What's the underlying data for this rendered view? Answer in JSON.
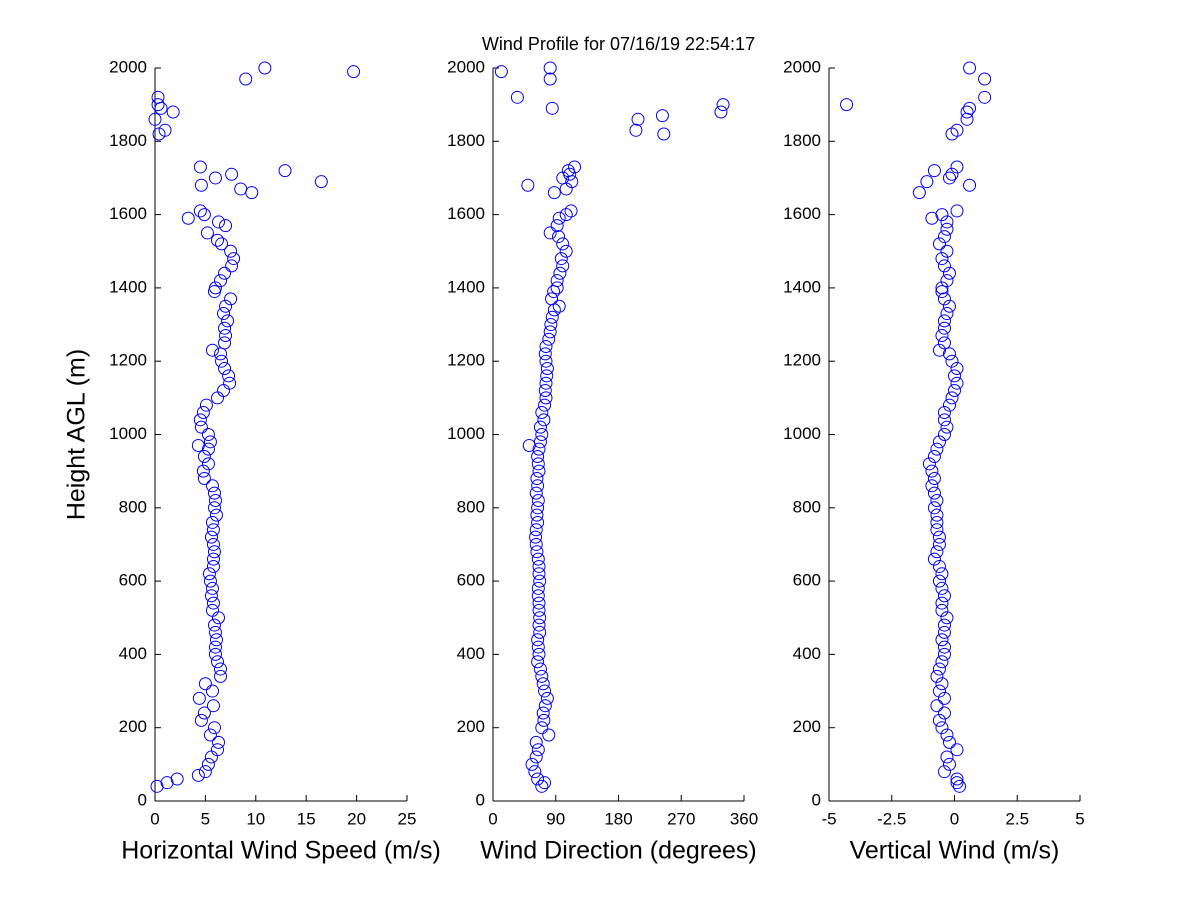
{
  "chart_data": [
    {
      "type": "scatter",
      "xlabel": "Horizontal Wind Speed (m/s)",
      "ylabel": "Height AGL (m)",
      "color": "#0000ff",
      "xlim": [
        0,
        25
      ],
      "xticks": [
        0,
        5,
        10,
        15,
        20,
        25
      ],
      "ylim": [
        0,
        2000
      ],
      "yticks": [
        0,
        200,
        400,
        600,
        800,
        1000,
        1200,
        1400,
        1600,
        1800,
        2000
      ],
      "x": [
        0.2,
        1.2,
        2.2,
        4.3,
        5.0,
        5.3,
        5.6,
        6.2,
        6.3,
        5.5,
        5.9,
        4.6,
        4.9,
        5.8,
        4.4,
        5.7,
        5.0,
        6.5,
        6.5,
        6.2,
        6.0,
        6.0,
        6.1,
        6.0,
        5.9,
        6.3,
        5.7,
        5.8,
        5.6,
        5.7,
        5.5,
        5.4,
        5.8,
        5.8,
        5.9,
        5.8,
        5.6,
        5.8,
        5.7,
        6.1,
        5.9,
        6.0,
        5.9,
        5.7,
        4.9,
        4.8,
        5.3,
        4.9,
        5.3,
        4.3,
        5.5,
        5.3,
        4.6,
        4.5,
        4.8,
        5.1,
        6.2,
        6.8,
        7.4,
        7.3,
        6.9,
        6.6,
        6.5,
        5.7,
        6.9,
        7.0,
        6.9,
        7.2,
        6.8,
        7.0,
        7.5,
        5.9,
        6.0,
        6.5,
        6.9,
        7.6,
        7.8,
        7.5,
        6.6,
        6.2,
        5.2,
        7.0,
        6.3,
        3.3,
        4.9,
        4.5,
        9.6,
        8.5,
        4.6,
        16.5,
        6.0,
        7.6,
        12.9,
        4.5,
        0.4,
        1.0,
        0.0,
        1.8,
        0.6,
        0.3,
        0.3,
        9.0,
        19.7,
        10.9
      ],
      "y": [
        40,
        50,
        60,
        70,
        80,
        100,
        120,
        140,
        160,
        180,
        200,
        220,
        240,
        260,
        280,
        300,
        320,
        340,
        360,
        380,
        400,
        420,
        440,
        460,
        480,
        500,
        520,
        540,
        560,
        580,
        600,
        620,
        640,
        660,
        680,
        700,
        720,
        740,
        760,
        780,
        800,
        820,
        840,
        860,
        880,
        900,
        920,
        940,
        960,
        970,
        980,
        1000,
        1020,
        1040,
        1060,
        1080,
        1100,
        1120,
        1140,
        1160,
        1180,
        1200,
        1220,
        1230,
        1250,
        1270,
        1290,
        1310,
        1330,
        1350,
        1370,
        1390,
        1400,
        1420,
        1440,
        1460,
        1480,
        1500,
        1520,
        1530,
        1550,
        1570,
        1580,
        1590,
        1600,
        1610,
        1660,
        1670,
        1680,
        1690,
        1700,
        1710,
        1720,
        1730,
        1820,
        1830,
        1860,
        1880,
        1890,
        1900,
        1920,
        1970,
        1990,
        2000
      ]
    },
    {
      "type": "scatter",
      "title": "Wind Profile for  07/16/19 22:54:17",
      "xlabel": "Wind Direction (degrees)",
      "color": "#0000ff",
      "xlim": [
        0,
        360
      ],
      "xticks": [
        0,
        90,
        180,
        270,
        360
      ],
      "ylim": [
        0,
        2000
      ],
      "yticks": [
        0,
        200,
        400,
        600,
        800,
        1000,
        1200,
        1400,
        1600,
        1800,
        2000
      ],
      "x": [
        70,
        74,
        64,
        60,
        56,
        62,
        65,
        62,
        80,
        70,
        73,
        72,
        75,
        78,
        74,
        72,
        70,
        68,
        64,
        66,
        65,
        64,
        67,
        66,
        67,
        66,
        66,
        65,
        65,
        67,
        66,
        66,
        65,
        63,
        62,
        61,
        62,
        64,
        63,
        64,
        65,
        62,
        64,
        63,
        66,
        65,
        64,
        66,
        52,
        68,
        70,
        68,
        73,
        70,
        74,
        76,
        75,
        76,
        77,
        78,
        76,
        75,
        76,
        80,
        82,
        83,
        85,
        88,
        95,
        84,
        87,
        92,
        92,
        96,
        100,
        98,
        105,
        100,
        94,
        82,
        92,
        95,
        105,
        112,
        88,
        105,
        50,
        113,
        100,
        110,
        108,
        117,
        245,
        205,
        208,
        243,
        327,
        85,
        330,
        35,
        82,
        12,
        82
      ],
      "y": [
        40,
        50,
        60,
        80,
        100,
        120,
        140,
        160,
        180,
        200,
        220,
        240,
        260,
        280,
        300,
        320,
        340,
        360,
        380,
        400,
        420,
        440,
        460,
        480,
        500,
        520,
        540,
        560,
        580,
        600,
        620,
        640,
        660,
        680,
        700,
        720,
        740,
        760,
        780,
        800,
        820,
        840,
        860,
        880,
        900,
        920,
        940,
        960,
        970,
        980,
        1000,
        1020,
        1040,
        1060,
        1080,
        1100,
        1120,
        1140,
        1160,
        1180,
        1200,
        1220,
        1240,
        1260,
        1280,
        1300,
        1320,
        1340,
        1350,
        1370,
        1390,
        1400,
        1420,
        1440,
        1460,
        1480,
        1500,
        1520,
        1540,
        1550,
        1570,
        1590,
        1600,
        1610,
        1660,
        1670,
        1680,
        1690,
        1700,
        1710,
        1720,
        1730,
        1820,
        1830,
        1860,
        1870,
        1880,
        1890,
        1900,
        1920,
        1970,
        1990,
        2000
      ]
    },
    {
      "type": "scatter",
      "xlabel": "Vertical Wind (m/s)",
      "color": "#0000ff",
      "xlim": [
        -5,
        5
      ],
      "xticks": [
        -5,
        -2.5,
        0,
        2.5,
        5
      ],
      "ylim": [
        0,
        2000
      ],
      "yticks": [
        0,
        200,
        400,
        600,
        800,
        1000,
        1200,
        1400,
        1600,
        1800,
        2000
      ],
      "x": [
        0.2,
        0.1,
        0.1,
        -0.4,
        -0.2,
        -0.3,
        0.1,
        -0.2,
        -0.3,
        -0.5,
        -0.6,
        -0.4,
        -0.7,
        -0.4,
        -0.6,
        -0.5,
        -0.7,
        -0.6,
        -0.5,
        -0.4,
        -0.4,
        -0.5,
        -0.4,
        -0.4,
        -0.3,
        -0.5,
        -0.5,
        -0.4,
        -0.5,
        -0.6,
        -0.5,
        -0.6,
        -0.8,
        -0.7,
        -0.6,
        -0.6,
        -0.7,
        -0.7,
        -0.7,
        -0.8,
        -0.7,
        -0.8,
        -0.9,
        -0.8,
        -0.9,
        -1.0,
        -0.8,
        -0.7,
        -0.6,
        -0.4,
        -0.3,
        -0.4,
        -0.4,
        -0.2,
        -0.1,
        0.0,
        0.1,
        0.0,
        0.1,
        -0.1,
        -0.2,
        -0.6,
        -0.4,
        -0.5,
        -0.4,
        -0.4,
        -0.3,
        -0.2,
        -0.4,
        -0.5,
        -0.5,
        -0.3,
        -0.2,
        -0.4,
        -0.5,
        -0.3,
        -0.6,
        -0.4,
        -0.3,
        -0.3,
        -0.9,
        -0.5,
        0.1,
        -1.4,
        0.6,
        -1.1,
        -0.2,
        -0.1,
        -0.8,
        0.1,
        -0.1,
        0.1,
        0.5,
        0.5,
        0.6,
        -4.3,
        1.2,
        1.2,
        0.6
      ],
      "y": [
        40,
        50,
        60,
        80,
        100,
        120,
        140,
        160,
        180,
        200,
        220,
        240,
        260,
        280,
        300,
        320,
        340,
        360,
        380,
        400,
        420,
        440,
        460,
        480,
        500,
        520,
        540,
        560,
        580,
        600,
        620,
        640,
        660,
        680,
        700,
        720,
        740,
        760,
        780,
        800,
        820,
        840,
        860,
        880,
        900,
        920,
        940,
        960,
        980,
        1000,
        1020,
        1040,
        1060,
        1080,
        1100,
        1120,
        1140,
        1160,
        1180,
        1200,
        1220,
        1230,
        1250,
        1270,
        1290,
        1310,
        1330,
        1350,
        1370,
        1390,
        1400,
        1420,
        1440,
        1460,
        1480,
        1500,
        1520,
        1540,
        1560,
        1580,
        1590,
        1600,
        1610,
        1660,
        1680,
        1690,
        1700,
        1710,
        1720,
        1730,
        1820,
        1830,
        1860,
        1880,
        1890,
        1900,
        1920,
        1970,
        2000
      ]
    }
  ]
}
